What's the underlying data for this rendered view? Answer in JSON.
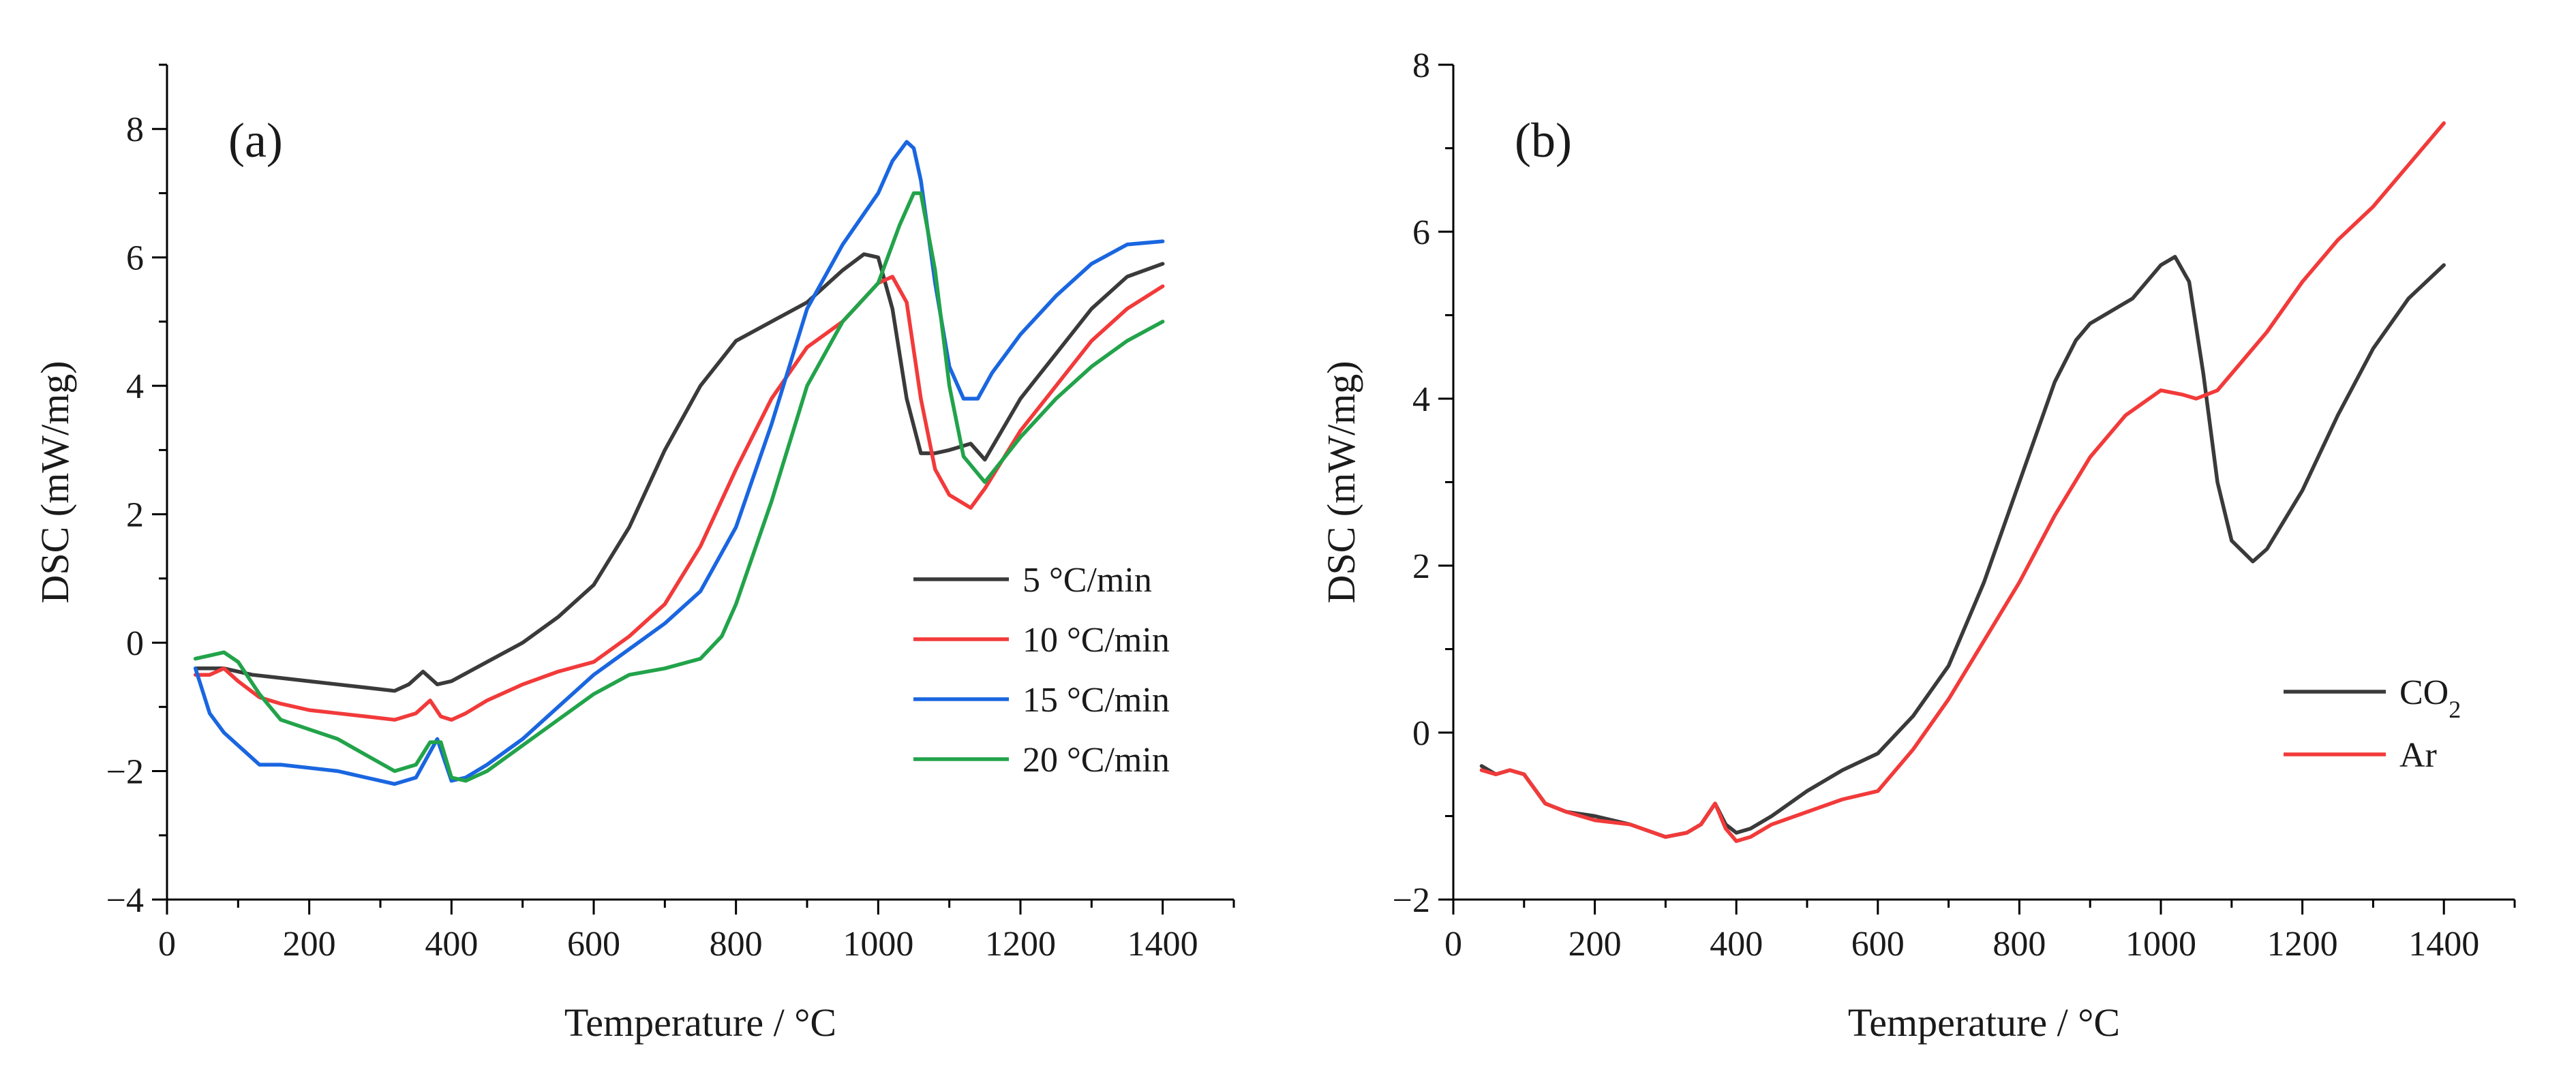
{
  "colors": {
    "black": "#3a3a3a",
    "red": "#f23a3a",
    "blue": "#1a66e0",
    "green": "#22a34a"
  },
  "chart_data": [
    {
      "type": "line",
      "panel_label": "(a)",
      "title": "",
      "xlabel": "Temperature / °C",
      "ylabel": "DSC (mW/mg)",
      "xlim": [
        0,
        1500
      ],
      "ylim": [
        -4,
        9
      ],
      "xticks": [
        0,
        200,
        400,
        600,
        800,
        1000,
        1200,
        1400
      ],
      "yticks": [
        -4,
        -2,
        0,
        2,
        4,
        6,
        8
      ],
      "legend_position": "center-right",
      "series": [
        {
          "name": "5 °C/min",
          "color": "#3a3a3a",
          "x": [
            40,
            80,
            120,
            160,
            200,
            240,
            280,
            320,
            340,
            360,
            380,
            400,
            450,
            500,
            550,
            600,
            650,
            700,
            750,
            800,
            850,
            900,
            950,
            980,
            1000,
            1020,
            1040,
            1060,
            1080,
            1100,
            1130,
            1150,
            1200,
            1250,
            1300,
            1350,
            1400
          ],
          "y": [
            -0.4,
            -0.4,
            -0.5,
            -0.55,
            -0.6,
            -0.65,
            -0.7,
            -0.75,
            -0.65,
            -0.45,
            -0.65,
            -0.6,
            -0.3,
            0.0,
            0.4,
            0.9,
            1.8,
            3.0,
            4.0,
            4.7,
            5.0,
            5.3,
            5.8,
            6.05,
            6.0,
            5.2,
            3.8,
            2.95,
            2.95,
            3.0,
            3.1,
            2.85,
            3.8,
            4.5,
            5.2,
            5.7,
            5.9
          ]
        },
        {
          "name": "10 °C/min",
          "color": "#f23a3a",
          "x": [
            40,
            60,
            80,
            100,
            130,
            160,
            200,
            240,
            280,
            320,
            350,
            370,
            385,
            400,
            420,
            450,
            500,
            550,
            600,
            650,
            700,
            750,
            800,
            850,
            900,
            950,
            1000,
            1020,
            1040,
            1060,
            1080,
            1100,
            1130,
            1150,
            1200,
            1250,
            1300,
            1350,
            1400
          ],
          "y": [
            -0.5,
            -0.5,
            -0.4,
            -0.6,
            -0.85,
            -0.95,
            -1.05,
            -1.1,
            -1.15,
            -1.2,
            -1.1,
            -0.9,
            -1.15,
            -1.2,
            -1.1,
            -0.9,
            -0.65,
            -0.45,
            -0.3,
            0.1,
            0.6,
            1.5,
            2.7,
            3.8,
            4.6,
            5.0,
            5.6,
            5.7,
            5.3,
            3.8,
            2.7,
            2.3,
            2.1,
            2.4,
            3.3,
            4.0,
            4.7,
            5.2,
            5.55
          ]
        },
        {
          "name": "15 °C/min",
          "color": "#1a66e0",
          "x": [
            40,
            60,
            80,
            100,
            130,
            160,
            200,
            240,
            280,
            320,
            350,
            370,
            380,
            400,
            420,
            450,
            500,
            550,
            600,
            650,
            700,
            750,
            800,
            850,
            900,
            950,
            1000,
            1020,
            1040,
            1050,
            1060,
            1080,
            1100,
            1120,
            1140,
            1160,
            1200,
            1250,
            1300,
            1350,
            1400
          ],
          "y": [
            -0.4,
            -1.1,
            -1.4,
            -1.6,
            -1.9,
            -1.9,
            -1.95,
            -2.0,
            -2.1,
            -2.2,
            -2.1,
            -1.7,
            -1.5,
            -2.15,
            -2.1,
            -1.9,
            -1.5,
            -1.0,
            -0.5,
            -0.1,
            0.3,
            0.8,
            1.8,
            3.4,
            5.2,
            6.2,
            7.0,
            7.5,
            7.8,
            7.7,
            7.2,
            5.6,
            4.3,
            3.8,
            3.8,
            4.2,
            4.8,
            5.4,
            5.9,
            6.2,
            6.25
          ]
        },
        {
          "name": "20 °C/min",
          "color": "#22a34a",
          "x": [
            40,
            60,
            80,
            100,
            130,
            160,
            200,
            240,
            280,
            320,
            350,
            370,
            385,
            400,
            420,
            450,
            500,
            550,
            600,
            650,
            700,
            750,
            780,
            800,
            850,
            900,
            950,
            1000,
            1030,
            1050,
            1060,
            1080,
            1100,
            1120,
            1150,
            1200,
            1250,
            1300,
            1350,
            1400
          ],
          "y": [
            -0.25,
            -0.2,
            -0.15,
            -0.3,
            -0.8,
            -1.2,
            -1.35,
            -1.5,
            -1.75,
            -2.0,
            -1.9,
            -1.55,
            -1.55,
            -2.1,
            -2.15,
            -2.0,
            -1.6,
            -1.2,
            -0.8,
            -0.5,
            -0.4,
            -0.25,
            0.1,
            0.6,
            2.2,
            4.0,
            5.0,
            5.6,
            6.5,
            7.0,
            7.0,
            5.8,
            4.0,
            2.9,
            2.5,
            3.2,
            3.8,
            4.3,
            4.7,
            5.0
          ]
        }
      ]
    },
    {
      "type": "line",
      "panel_label": "(b)",
      "title": "",
      "xlabel": "Temperature / °C",
      "ylabel": "DSC (mW/mg)",
      "xlim": [
        0,
        1500
      ],
      "ylim": [
        -2,
        8
      ],
      "xticks": [
        0,
        200,
        400,
        600,
        800,
        1000,
        1200,
        1400
      ],
      "yticks": [
        -2,
        0,
        2,
        4,
        6,
        8
      ],
      "legend_position": "bottom-right",
      "series": [
        {
          "name": "CO",
          "name_subscript": "2",
          "color": "#3a3a3a",
          "x": [
            40,
            60,
            80,
            100,
            130,
            160,
            200,
            250,
            300,
            330,
            350,
            370,
            385,
            400,
            420,
            450,
            500,
            550,
            600,
            650,
            700,
            750,
            800,
            850,
            880,
            900,
            940,
            960,
            980,
            1000,
            1020,
            1040,
            1060,
            1080,
            1100,
            1130,
            1150,
            1200,
            1250,
            1300,
            1350,
            1400
          ],
          "y": [
            -0.4,
            -0.5,
            -0.45,
            -0.5,
            -0.85,
            -0.95,
            -1.0,
            -1.1,
            -1.25,
            -1.2,
            -1.1,
            -0.85,
            -1.1,
            -1.2,
            -1.15,
            -1.0,
            -0.7,
            -0.45,
            -0.25,
            0.2,
            0.8,
            1.8,
            3.0,
            4.2,
            4.7,
            4.9,
            5.1,
            5.2,
            5.4,
            5.6,
            5.7,
            5.4,
            4.3,
            3.0,
            2.3,
            2.05,
            2.2,
            2.9,
            3.8,
            4.6,
            5.2,
            5.6
          ]
        },
        {
          "name": "Ar",
          "name_subscript": "",
          "color": "#f23a3a",
          "x": [
            40,
            60,
            80,
            100,
            130,
            160,
            200,
            250,
            300,
            330,
            350,
            370,
            385,
            400,
            420,
            450,
            500,
            550,
            600,
            650,
            700,
            750,
            800,
            850,
            900,
            950,
            1000,
            1030,
            1050,
            1080,
            1100,
            1150,
            1200,
            1250,
            1300,
            1350,
            1400
          ],
          "y": [
            -0.45,
            -0.5,
            -0.45,
            -0.5,
            -0.85,
            -0.95,
            -1.05,
            -1.1,
            -1.25,
            -1.2,
            -1.1,
            -0.85,
            -1.15,
            -1.3,
            -1.25,
            -1.1,
            -0.95,
            -0.8,
            -0.7,
            -0.2,
            0.4,
            1.1,
            1.8,
            2.6,
            3.3,
            3.8,
            4.1,
            4.05,
            4.0,
            4.1,
            4.3,
            4.8,
            5.4,
            5.9,
            6.3,
            6.8,
            7.3
          ]
        }
      ]
    }
  ]
}
